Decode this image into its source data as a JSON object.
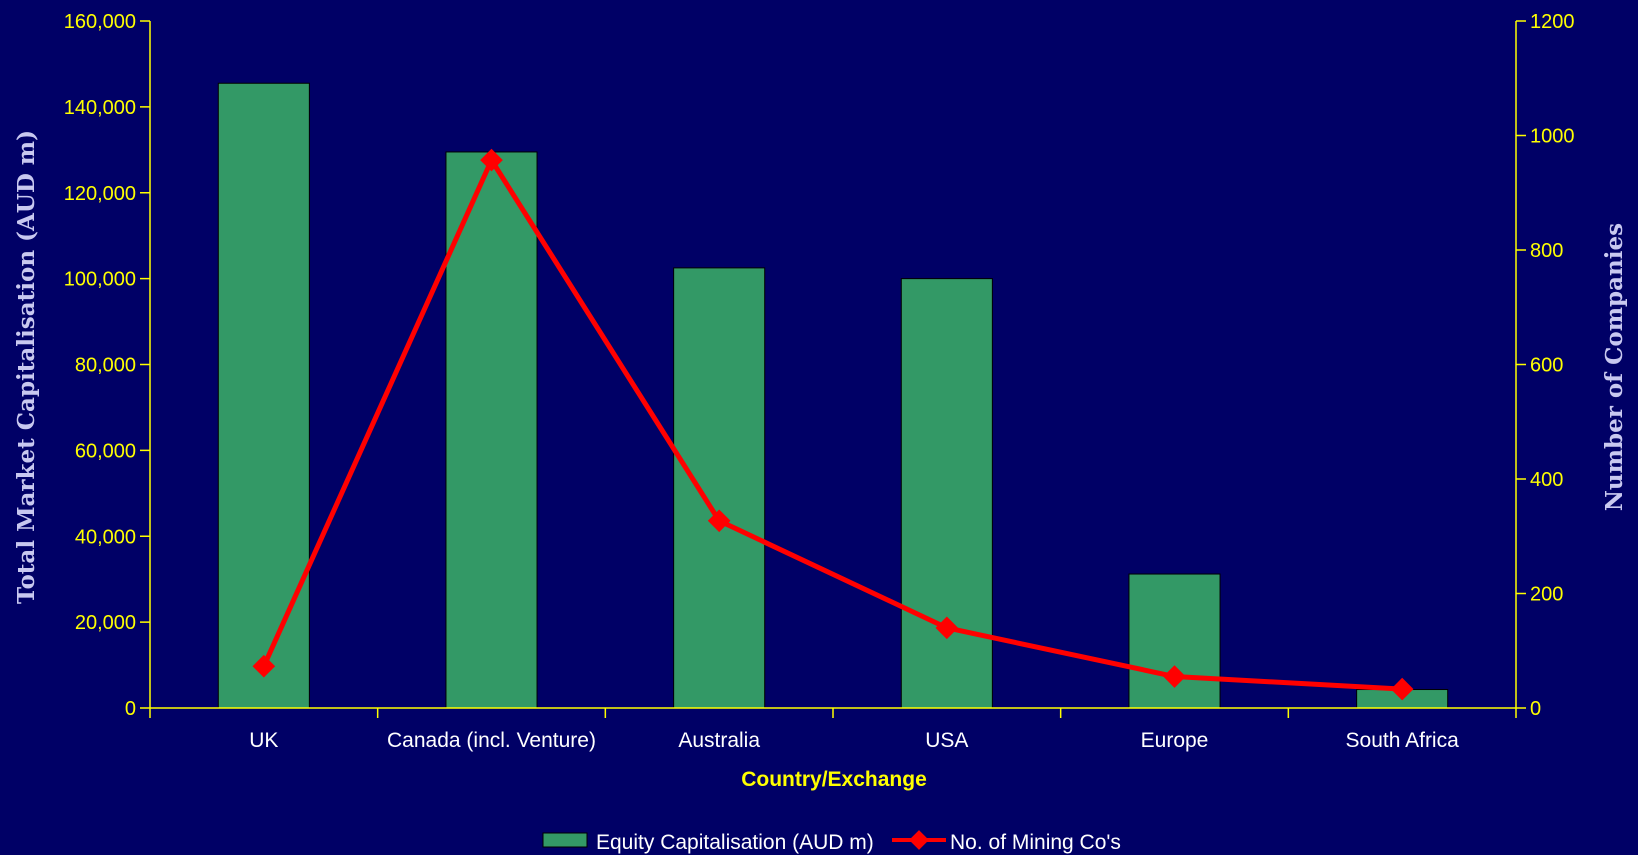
{
  "chart_data": {
    "type": "bar",
    "categories": [
      "UK",
      "Canada (incl. Venture)",
      "Australia",
      "USA",
      "Europe",
      "South Africa"
    ],
    "series": [
      {
        "name": "Equity Capitalisation (AUD m)",
        "type": "bar",
        "axis": "left",
        "values": [
          145500,
          129500,
          102500,
          100000,
          31200,
          4300
        ]
      },
      {
        "name": "No. of Mining Co's",
        "type": "line",
        "axis": "right",
        "values": [
          73,
          957,
          327,
          140,
          55,
          33
        ]
      }
    ],
    "xlabel": "Country/Exchange",
    "ylabel": "Total Market Capitalisation (AUD m)",
    "y2label": "Number of Companies",
    "ylim": [
      0,
      160000
    ],
    "y2lim": [
      0,
      1200
    ],
    "yticks": [
      "0",
      "20,000",
      "40,000",
      "60,000",
      "80,000",
      "100,000",
      "120,000",
      "140,000",
      "160,000"
    ],
    "y2ticks": [
      "0",
      "200",
      "400",
      "600",
      "800",
      "1000",
      "1200"
    ],
    "grid": false,
    "legend": "bottom",
    "colors": {
      "background": "#000066",
      "bar": "#339966",
      "bar_stroke": "#000000",
      "line": "#FF0000",
      "axis": "#FFFF00",
      "tick_text": "#FFFF00",
      "category_text": "#FFFFFF",
      "ytitle_text": "#C8C8F0",
      "xtitle_text": "#FFFF00"
    }
  }
}
